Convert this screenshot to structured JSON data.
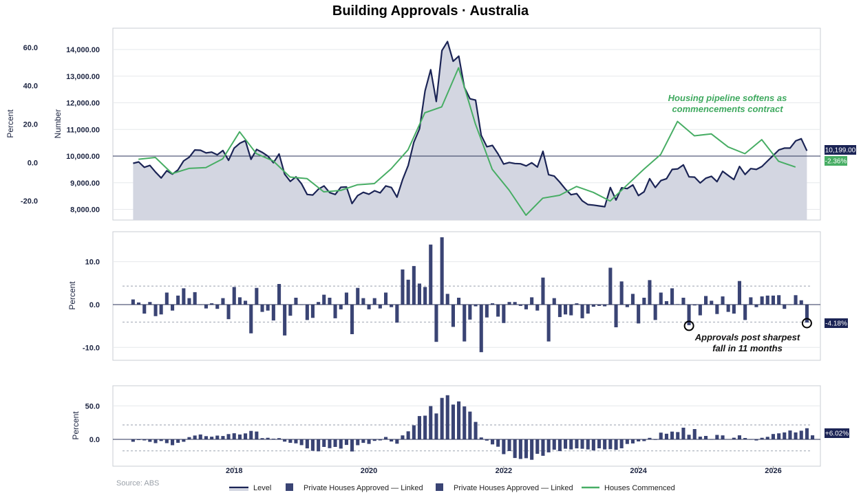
{
  "title": "Building Approvals · Australia",
  "source": "Source: ABS",
  "colors": {
    "navy": "#1b2455",
    "bar": "#3a4474",
    "green": "#47ad64",
    "area": "#d3d6e1",
    "dotted": "#b9bec7"
  },
  "chart_data": [
    {
      "type": "line",
      "panel": "top",
      "ylabel_left": "Percent",
      "ylabel_right": "Number",
      "ylim_number": [
        7600,
        14800
      ],
      "ylim_percent": [
        -30,
        70
      ],
      "number_ticks": [
        "8,000.00",
        "9,000.00",
        "10,000.00",
        "11,000.00",
        "12,000.00",
        "13,000.00",
        "14,000.00"
      ],
      "percent_ticks": [
        "-20.0",
        "0.0",
        "20.0",
        "40.0",
        "60.0"
      ],
      "x_start": 2016.5,
      "x_step": 0.08333,
      "series": [
        {
          "name": "Level",
          "values": [
            9730,
            9780,
            9580,
            9650,
            9400,
            9180,
            9450,
            9320,
            9480,
            9820,
            9960,
            10230,
            10220,
            10120,
            10150,
            10050,
            10210,
            9840,
            10300,
            10480,
            10580,
            9880,
            10250,
            10140,
            10000,
            9750,
            10080,
            9320,
            9050,
            9220,
            8960,
            8560,
            8540,
            8760,
            8880,
            8630,
            8560,
            8830,
            8840,
            8220,
            8520,
            8640,
            8570,
            8700,
            8620,
            8880,
            8820,
            8460,
            9120,
            9650,
            10520,
            11020,
            12450,
            13240,
            12050,
            13960,
            14300,
            13560,
            13750,
            12580,
            12150,
            12100,
            10780,
            10350,
            10400,
            10080,
            9700,
            9760,
            9720,
            9710,
            9630,
            9750,
            9590,
            10180,
            9300,
            9250,
            9020,
            8760,
            8550,
            8590,
            8320,
            8180,
            8160,
            8130,
            8100,
            8820,
            8350,
            8810,
            8780,
            8920,
            8520,
            8660,
            9150,
            8820,
            9080,
            9150,
            9500,
            9520,
            9670,
            9220,
            9210,
            8990,
            9170,
            9240,
            9040,
            9430,
            9270,
            9120,
            9610,
            9310,
            9530,
            9500,
            9610,
            9820,
            10020,
            10230,
            10300,
            10300,
            10570,
            10650,
            10199
          ]
        },
        {
          "name": "Houses Commenced",
          "x_start": 2016.58,
          "x_step": 0.25,
          "values_percent": [
            1.7,
            2.6,
            -5.8,
            -3.1,
            -2.7,
            1.9,
            16.0,
            4.6,
            0.8,
            -7.6,
            -8.4,
            -15.3,
            -14.6,
            -11.6,
            -11.0,
            -3.3,
            6.6,
            25.9,
            29.0,
            49.4,
            20.1,
            -3.6,
            -14.4,
            -27.5,
            -18.6,
            -17.1,
            -12.5,
            -15.6,
            -20.1,
            -11.8,
            -3.5,
            4.2,
            21.4,
            13.9,
            14.9,
            8.1,
            4.6,
            11.9,
            0.6,
            -2.36
          ]
        }
      ],
      "annotations": [
        "Housing pipeline softens as",
        "commencements contract"
      ],
      "badges": [
        {
          "text": "10,199.00",
          "color": "#1b2455"
        },
        {
          "text": "-2.36%",
          "color": "#47ad64"
        }
      ]
    },
    {
      "type": "bar",
      "panel": "middle",
      "name": "Private Houses Approved — Linked",
      "ylabel": "Percent",
      "ylim": [
        -13,
        17
      ],
      "ticks": [
        "-10.0",
        "0.0",
        "10.0"
      ],
      "band": [
        -4.1,
        4.3
      ],
      "x_start": 2016.5,
      "x_step": 0.08333,
      "values": [
        1.2,
        0.5,
        -2.1,
        0.6,
        -2.7,
        -2.3,
        2.8,
        -1.4,
        2.1,
        3.8,
        1.5,
        2.9,
        -0.1,
        -0.9,
        0.3,
        -1.0,
        1.5,
        -3.4,
        4.1,
        1.7,
        0.9,
        -6.7,
        3.9,
        -1.7,
        -1.4,
        -3.7,
        4.8,
        -7.2,
        -2.6,
        1.6,
        -0.1,
        -3.6,
        -3.1,
        0.6,
        2.3,
        1.6,
        -3.2,
        -1.1,
        2.8,
        -6.9,
        3.9,
        1.5,
        -1.1,
        1.5,
        -0.9,
        2.8,
        -0.6,
        -4.2,
        8.2,
        5.8,
        9.0,
        4.9,
        4.1,
        14.0,
        -8.7,
        15.7,
        2.5,
        -5.2,
        1.6,
        -8.6,
        -3.5,
        -0.4,
        -11.1,
        -3.0,
        0.3,
        -2.8,
        -4.3,
        0.6,
        0.6,
        -0.3,
        -1.1,
        1.7,
        -1.4,
        6.3,
        -8.6,
        1.5,
        -2.9,
        -2.3,
        -2.5,
        0.3,
        -3.2,
        -2.1,
        -0.5,
        -0.3,
        -0.4,
        8.6,
        -5.3,
        5.4,
        -0.6,
        2.5,
        -4.4,
        1.6,
        5.7,
        -3.6,
        2.8,
        0.8,
        3.8,
        0.1,
        1.6,
        -4.8,
        -0.2,
        -2.5,
        2.0,
        0.9,
        -2.2,
        1.9,
        -1.7,
        -2.1,
        5.5,
        -3.6,
        1.7,
        -0.6,
        1.9,
        2.1,
        2.1,
        2.2,
        -1.0,
        -0.1,
        2.2,
        1.0,
        -4.18
      ],
      "annotations": [
        "Approvals post sharpest",
        "fall in 11 months"
      ],
      "badge": {
        "text": "-4.18%",
        "color": "#1b2455"
      }
    },
    {
      "type": "bar",
      "panel": "bottom",
      "name": "Private Houses Approved — Linked",
      "ylabel": "Percent",
      "ylim": [
        -40,
        80
      ],
      "ticks": [
        "0.0",
        "50.0"
      ],
      "band": [
        -17.0,
        21.5
      ],
      "x_start": 2016.5,
      "x_step": 0.08333,
      "values": [
        -3.6,
        -1.0,
        -1.5,
        -3.7,
        -5.6,
        -2.5,
        -5.6,
        -8.7,
        -5.1,
        -3.6,
        3.4,
        5.7,
        7.3,
        4.8,
        4.0,
        5.6,
        5.0,
        7.9,
        9.1,
        7.3,
        8.9,
        12.6,
        11.7,
        1.8,
        2.4,
        1.0,
        1.8,
        -3.4,
        -5.1,
        -5.9,
        -8.6,
        -13.4,
        -17.0,
        -17.8,
        -11.3,
        -13.1,
        -11.3,
        -13.7,
        -8.3,
        -18.1,
        -8.7,
        -5.2,
        -6.8,
        -2.3,
        -1.5,
        3.6,
        -3.2,
        -6.5,
        5.9,
        12.0,
        21.0,
        34.8,
        35.4,
        49.6,
        38.7,
        61.8,
        65.8,
        51.9,
        56.6,
        49.1,
        41.4,
        26.1,
        2.9,
        -1.8,
        -7.5,
        -11.0,
        -22.1,
        -17.4,
        -27.8,
        -29.2,
        -28.1,
        -30.5,
        -21.5,
        -24.5,
        -19.4,
        -15.4,
        -17.5,
        -14.0,
        -15.0,
        -13.4,
        -14.1,
        -15.0,
        -16.5,
        -13.3,
        -15.0,
        -14.6,
        -15.6,
        -13.3,
        -6.9,
        -6.1,
        -3.1,
        -2.6,
        2.3,
        -0.8,
        10.1,
        8.4,
        11.6,
        10.9,
        17.4,
        6.9,
        15.4,
        4.1,
        5.1,
        -0.6,
        6.7,
        5.9,
        0.3,
        2.5,
        6.0,
        2.0,
        -0.6,
        -1.6,
        2.4,
        3.8,
        8.0,
        9.0,
        10.4,
        13.2,
        10.4,
        12.9,
        16.6,
        6.02
      ],
      "badge": {
        "text": "+6.02%",
        "color": "#1b2455"
      }
    }
  ],
  "x_axis": {
    "ticks": [
      "2018",
      "2020",
      "2022",
      "2024",
      "2026"
    ],
    "tick_values": [
      2018,
      2020,
      2022,
      2024,
      2026
    ],
    "range": [
      2016.2,
      2026.7
    ]
  },
  "legend": [
    "Level",
    "Private Houses Approved — Linked",
    "Private Houses Approved — Linked",
    "Houses Commenced"
  ]
}
